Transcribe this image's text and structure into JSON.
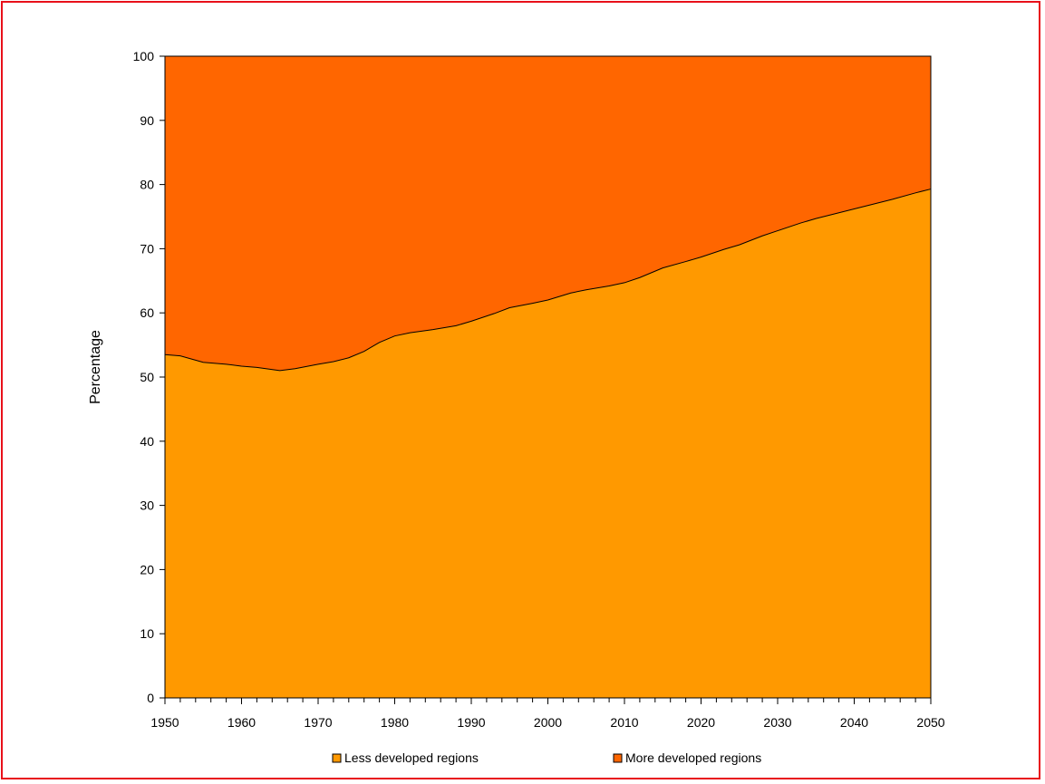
{
  "chart_data": {
    "type": "area",
    "title": "",
    "xlabel": "",
    "ylabel": "Percentage",
    "xlim": [
      1950,
      2050
    ],
    "ylim": [
      0,
      100
    ],
    "x_ticks": [
      "1950",
      "1960",
      "1970",
      "1980",
      "1990",
      "2000",
      "2010",
      "2020",
      "2030",
      "2040",
      "2050"
    ],
    "y_ticks": [
      "0",
      "10",
      "20",
      "30",
      "40",
      "50",
      "60",
      "70",
      "80",
      "90",
      "100"
    ],
    "stacked": true,
    "legend_position": "bottom",
    "x": [
      1950,
      1952,
      1955,
      1958,
      1960,
      1962,
      1965,
      1967,
      1970,
      1972,
      1974,
      1976,
      1978,
      1980,
      1982,
      1985,
      1988,
      1990,
      1993,
      1995,
      1998,
      2000,
      2003,
      2005,
      2008,
      2010,
      2012,
      2015,
      2018,
      2020,
      2023,
      2025,
      2028,
      2030,
      2033,
      2035,
      2038,
      2040,
      2043,
      2045,
      2048,
      2050
    ],
    "series": [
      {
        "name": "Less developed regions",
        "color": "#ff9900",
        "values": [
          53.5,
          53.3,
          52.3,
          52.0,
          51.7,
          51.5,
          51.0,
          51.3,
          52.0,
          52.4,
          53.0,
          54.0,
          55.4,
          56.4,
          56.9,
          57.4,
          58.0,
          58.7,
          59.9,
          60.8,
          61.5,
          62.0,
          63.1,
          63.6,
          64.2,
          64.7,
          65.5,
          67.0,
          68.0,
          68.7,
          69.9,
          70.6,
          72.0,
          72.8,
          74.0,
          74.7,
          75.6,
          76.2,
          77.1,
          77.7,
          78.7,
          79.3
        ]
      },
      {
        "name": "More developed regions",
        "color": "#ff6600",
        "values": [
          46.5,
          46.7,
          47.7,
          48.0,
          48.3,
          48.5,
          49.0,
          48.7,
          48.0,
          47.6,
          47.0,
          46.0,
          44.6,
          43.6,
          43.1,
          42.6,
          42.0,
          41.3,
          40.1,
          39.2,
          38.5,
          38.0,
          36.9,
          36.4,
          35.8,
          35.3,
          34.5,
          33.0,
          32.0,
          31.3,
          30.1,
          29.4,
          28.0,
          27.2,
          26.0,
          25.3,
          24.4,
          23.8,
          22.9,
          22.3,
          21.3,
          20.7
        ]
      }
    ]
  }
}
